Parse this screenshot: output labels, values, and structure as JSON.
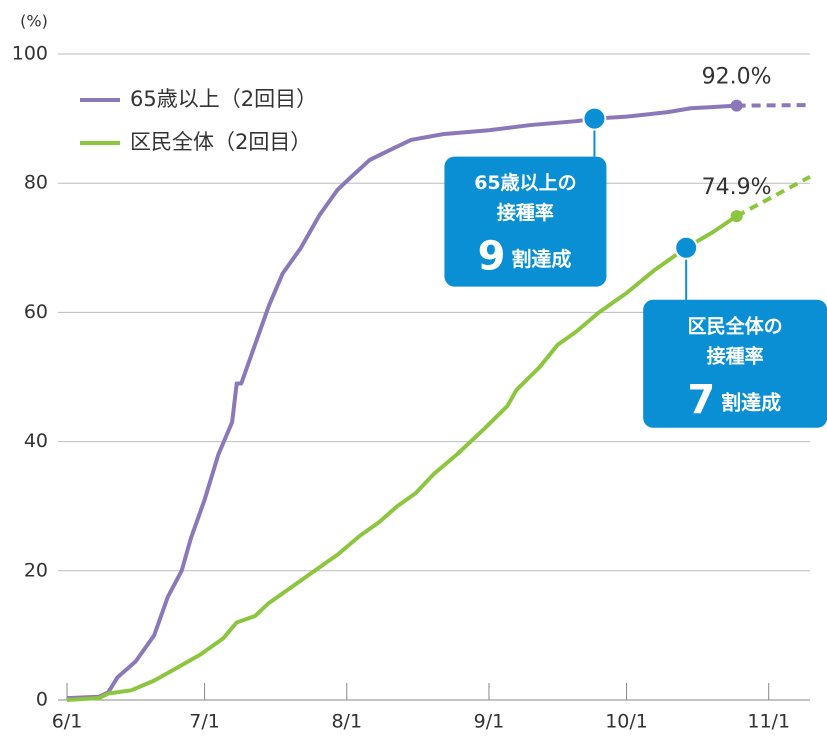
{
  "chart_data": {
    "type": "line",
    "y_unit_label": "(%)",
    "xlim": [
      "6/1",
      "11/10"
    ],
    "xticks": [
      "6/1",
      "7/1",
      "8/1",
      "9/1",
      "10/1",
      "11/1"
    ],
    "ylim": [
      0,
      100
    ],
    "yticks": [
      0,
      20,
      40,
      60,
      80,
      100
    ],
    "grid": true,
    "legend": "top-left",
    "series": [
      {
        "name": "65歳以上（2回目）",
        "color": "#8b78b8",
        "x": [
          "6/1",
          "6/8",
          "6/10",
          "6/12",
          "6/16",
          "6/20",
          "6/23",
          "6/26",
          "6/28",
          "7/1",
          "7/4",
          "7/7",
          "7/8",
          "7/9",
          "7/12",
          "7/15",
          "7/18",
          "7/22",
          "7/26",
          "7/30",
          "8/2",
          "8/6",
          "8/10",
          "8/15",
          "8/22",
          "9/1",
          "9/10",
          "9/20",
          "9/24",
          "10/1",
          "10/10",
          "10/15",
          "10/20",
          "10/25"
        ],
        "values": [
          0.3,
          0.5,
          1.2,
          3.5,
          6,
          10,
          16,
          20,
          25,
          31,
          38,
          43,
          49,
          49,
          55,
          61,
          66,
          70,
          75,
          79,
          81,
          83.6,
          85,
          86.7,
          87.6,
          88.2,
          89,
          89.6,
          90,
          90.3,
          91,
          91.6,
          91.8,
          92.0
        ]
      },
      {
        "name": "区民全体（2回目）",
        "color": "#8cc63f",
        "x": [
          "6/1",
          "6/8",
          "6/10",
          "6/15",
          "6/20",
          "6/25",
          "6/30",
          "7/5",
          "7/8",
          "7/12",
          "7/15",
          "7/20",
          "7/25",
          "7/30",
          "8/4",
          "8/8",
          "8/12",
          "8/16",
          "8/20",
          "8/25",
          "8/31",
          "9/5",
          "9/7",
          "9/12",
          "9/16",
          "9/20",
          "9/25",
          "10/1",
          "10/7",
          "10/14",
          "10/20",
          "10/25"
        ],
        "values": [
          0,
          0.3,
          1,
          1.5,
          3,
          5,
          7,
          9.5,
          12,
          13,
          15,
          17.5,
          20,
          22.5,
          25.5,
          27.5,
          30,
          32,
          35,
          38,
          42,
          45.5,
          48,
          51.5,
          55,
          57,
          60,
          63,
          66.5,
          70,
          72.5,
          74.9
        ]
      },
      {
        "style": "dashed",
        "color": "#8b78b8",
        "x": [
          "10/25",
          "11/10"
        ],
        "values": [
          92.0,
          92.1
        ]
      },
      {
        "style": "dashed",
        "color": "#8cc63f",
        "x": [
          "10/25",
          "11/10"
        ],
        "values": [
          74.9,
          81
        ]
      }
    ],
    "end_labels": [
      {
        "series": 0,
        "text": "92.0%"
      },
      {
        "series": 1,
        "text": "74.9%"
      }
    ],
    "callouts": [
      {
        "x": "9/24",
        "y": 90,
        "lines": [
          "65歳以上の",
          "接種率"
        ],
        "big": "9",
        "suffix": "割達成"
      },
      {
        "x": "10/14",
        "y": 70,
        "lines": [
          "区民全体の",
          "接種率"
        ],
        "big": "7",
        "suffix": "割達成"
      }
    ]
  }
}
